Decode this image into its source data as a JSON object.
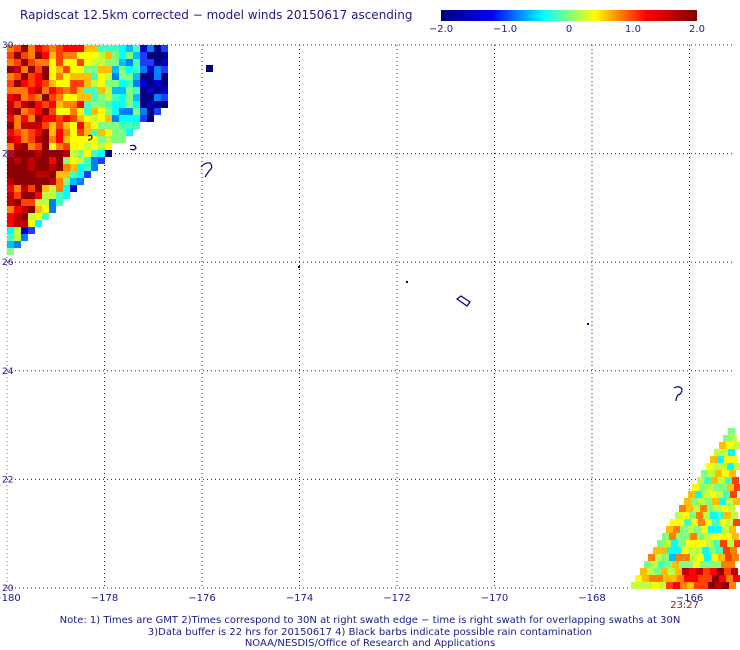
{
  "title": "Rapidscat 12.5km corrected − model winds 20150617 ascending",
  "colorbar": {
    "min": -2.0,
    "max": 2.0,
    "tick_labels": [
      "−2.0",
      "−1.0",
      "0",
      "1.0",
      "2.0"
    ],
    "tick_values": [
      -2.0,
      -1.0,
      0,
      1.0,
      2.0
    ],
    "colors": [
      "#000080",
      "#0000ff",
      "#00ffff",
      "#ffff00",
      "#ff0000",
      "#800000"
    ]
  },
  "map": {
    "lon_range": [
      -180,
      -165
    ],
    "lat_range": [
      20,
      30
    ],
    "lon_ticks": [
      -180,
      -178,
      -176,
      -174,
      -172,
      -170,
      -168,
      -166
    ],
    "lon_tick_labels": [
      "−180",
      "−178",
      "−176",
      "−174",
      "−172",
      "−170",
      "−168",
      "−166"
    ],
    "lat_ticks": [
      20,
      22,
      24,
      26,
      28,
      30
    ],
    "lat_tick_labels": [
      "20",
      "22",
      "24",
      "26",
      "28",
      "30"
    ],
    "grid": "dotted",
    "swath_time_label": "23:27",
    "swath_time_lon": -166.1
  },
  "notes": [
    "Note: 1) Times are GMT 2)Times correspond to 30N at right swath edge − time is right swath for overlapping swaths at 30N",
    "3)Data buffer is 22 hrs for 20150617 4) Black barbs indicate possible rain contamination",
    "NOAA/NESDIS/Office of Research and Applications"
  ]
}
